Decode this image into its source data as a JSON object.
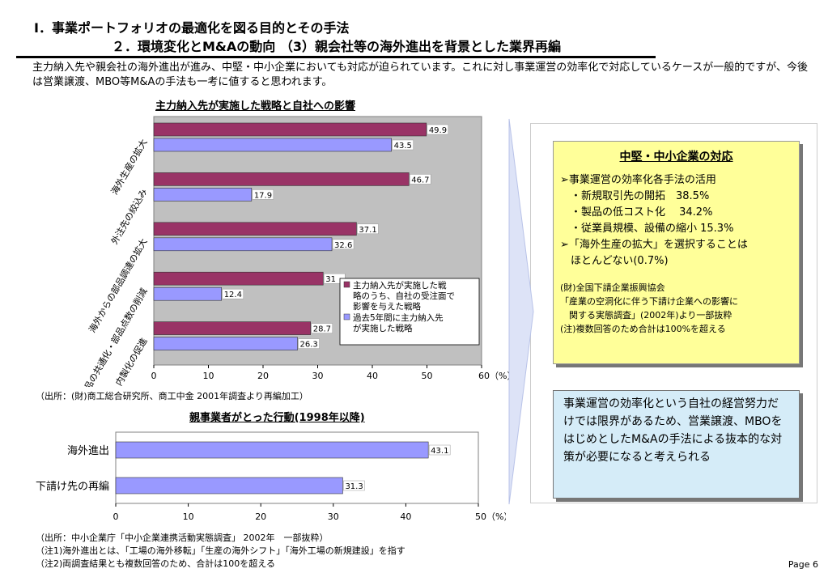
{
  "header": {
    "title1": "Ⅰ．事業ポートフォリオの最適化を図る目的とその手法",
    "title2": "２．環境変化とM&Aの動向 （3）親会社等の海外進出を背景とした業界再編"
  },
  "intro": "主力納入先や親会社の海外進出が進み、中堅・中小企業においても対応が迫られています。これに対し事業運営の効率化で対応しているケースが一般的ですが、今後は営業譲渡、MBO等M&Aの手法も一考に値すると思われます。",
  "chart1_title": "主力納入先が実施した戦略と自社への影響",
  "chart2_title": "親事業者がとった行動(1998年以降)",
  "source1": "（出所：(財)商工総合研究所、商工中金 2001年調査より再編加工）",
  "notes2": [
    "（出所：中小企業庁「中小企業連携活動実態調査」 2002年　一部抜粋）",
    "（注1)海外進出とは、「工場の海外移転」「生産の海外シフト」「海外工場の新規建設」を指す",
    "（注2)両調査結果とも複数回答のため、合計は100を超える"
  ],
  "page_label": "Page 6",
  "yellow_box": {
    "title": "中堅・中小企業の対応",
    "lines": [
      "➢事業運営の効率化各手法の活用",
      "　・新規取引先の開拓　38.5%",
      "　・製品の低コスト化　 34.2%",
      "　・従業員規模、設備の縮小 15.3%",
      "➢「海外生産の拡大」を選択することは",
      "　ほとんどない(0.7%)"
    ],
    "small_lines": [
      "(財)全国下請企業振興協会",
      "「産業の空洞化に伴う下請け企業への影響に",
      "　関する実態調査」(2002年)より一部抜粋",
      "(注)複数回答のため合計は100%を超える"
    ]
  },
  "blue_box": "事業運営の効率化という自社の経営努力だけでは限界があるため、営業譲渡、MBOをはじめとしたM&Aの手法による抜本的な対策が必要になると考えられる",
  "colors": {
    "series1": "#993366",
    "series2": "#9999ff",
    "plot_bg": "#c0c0c0",
    "yellow": "#ffff99",
    "blue": "#d5ecf8"
  },
  "chart_data": [
    {
      "type": "bar",
      "orientation": "horizontal",
      "categories": [
        "海外生産の拡大",
        "外注先の絞込み",
        "海外からの部品調達の拡大",
        "部品の共通化・部品点数の削減",
        "内製化の促進"
      ],
      "series": [
        {
          "name": "主力納入先が実施した戦略のうち、自社の受注面で影響を与えた戦略",
          "values": [
            49.9,
            46.7,
            37.1,
            31,
            28.7
          ]
        },
        {
          "name": "過去5年間に主力納入先が実施した戦略",
          "values": [
            43.5,
            17.9,
            32.6,
            12.4,
            26.3
          ]
        }
      ],
      "xlim": [
        0,
        60
      ],
      "xticks": [
        "0",
        "10",
        "20",
        "30",
        "40",
        "50",
        "60（%）"
      ],
      "legend": "lower-right"
    },
    {
      "type": "bar",
      "orientation": "horizontal",
      "categories": [
        "海外進出",
        "下請け先の再編"
      ],
      "values": [
        43.1,
        31.3
      ],
      "xlim": [
        0,
        50
      ],
      "xticks": [
        "0",
        "10",
        "20",
        "30",
        "40",
        "50（%）"
      ]
    }
  ]
}
